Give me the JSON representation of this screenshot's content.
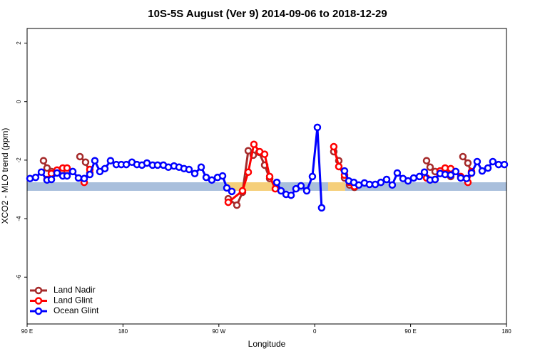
{
  "chart_data": {
    "type": "line",
    "title": "10S-5S August (Ver 9)   2014-09-06 to 2018-12-29",
    "x_label": "Longitude",
    "y_label": "XCO2 - MLO trend (ppm)",
    "xlim": [
      90,
      540
    ],
    "xticks": [
      {
        "value": 90,
        "label": "90 E"
      },
      180,
      {
        "value": 270,
        "label": "90 W"
      },
      {
        "value": 360,
        "label": "0"
      },
      {
        "value": 450,
        "label": "90 E"
      },
      {
        "value": 540,
        "label": "180"
      }
    ],
    "ylim": [
      -7.6,
      2.5
    ],
    "yticks": [
      2,
      0,
      -2,
      -4,
      -6
    ],
    "legend": "bottom-left",
    "series": [
      {
        "name": "Land Nadir",
        "color": "#a52a2a",
        "x": [
          105.4,
          108.7,
          112.8,
          118.1,
          123.5,
          127.5,
          null,
          139.6,
          144.9,
          148.9,
          null,
          278.8,
          286.9,
          292.2,
          297.6,
          302.3,
          307.6,
          313.0,
          317.7,
          null,
          377.9,
          382.6,
          388.0,
          392.7,
          397.3,
          null,
          465.0,
          468.3,
          473.0,
          477.7,
          482.4,
          487.7,
          null,
          499.1,
          503.8,
          507.2
        ],
        "values": [
          -2.02,
          -2.27,
          -2.39,
          -2.39,
          -2.37,
          -2.37,
          null,
          -1.88,
          -2.07,
          -2.44,
          null,
          -3.32,
          -3.54,
          -3.1,
          -1.68,
          -1.83,
          -1.73,
          -2.17,
          -2.63,
          null,
          -1.71,
          -2.02,
          -2.61,
          -2.85,
          -2.93,
          null,
          -2.02,
          -2.24,
          -2.39,
          -2.37,
          -2.37,
          -2.56,
          null,
          -1.88,
          -2.1,
          -2.44
        ]
      },
      {
        "name": "Land Glint",
        "color": "#ff0000",
        "x": [
          108.7,
          112.8,
          118.1,
          123.5,
          127.5,
          null,
          143.6,
          148.9,
          null,
          278.8,
          292.2,
          297.6,
          302.9,
          308.3,
          313.0,
          317.7,
          323.0,
          null,
          377.9,
          382.6,
          388.0,
          392.7,
          397.3,
          null,
          465.0,
          473.0,
          477.7,
          482.4,
          487.7,
          null,
          497.1,
          503.8,
          507.2
        ],
        "values": [
          -2.66,
          -2.46,
          -2.34,
          -2.27,
          -2.27,
          null,
          -2.76,
          -2.32,
          null,
          -3.44,
          -3.05,
          -2.41,
          -1.46,
          -1.71,
          -1.8,
          -2.56,
          -2.98,
          null,
          -1.54,
          -2.22,
          -2.51,
          -2.76,
          -2.9,
          null,
          -2.61,
          -2.66,
          -2.37,
          -2.27,
          -2.29,
          null,
          -2.56,
          -2.76,
          -2.39
        ]
      },
      {
        "name": "Ocean Glint",
        "color": "#0000ff",
        "x": [
          92.7,
          98.0,
          103.4,
          108.7,
          112.8,
          118.1,
          123.5,
          127.5,
          132.9,
          138.2,
          143.6,
          148.9,
          153.6,
          158.3,
          163.0,
          168.3,
          173.7,
          178.4,
          183.1,
          188.4,
          193.1,
          197.8,
          202.5,
          207.8,
          212.5,
          217.9,
          222.6,
          227.9,
          232.6,
          237.3,
          242.0,
          247.4,
          253.4,
          258.1,
          263.4,
          268.8,
          273.5,
          277.5,
          282.2,
          null,
          324.4,
          328.4,
          333.1,
          337.8,
          342.4,
          347.1,
          352.5,
          357.8,
          362.5,
          366.5,
          null,
          388.0,
          392.0,
          396.7,
          401.4,
          406.7,
          411.4,
          416.8,
          422.1,
          427.5,
          432.8,
          437.5,
          442.9,
          447.6,
          452.9,
          458.3,
          463.0,
          468.3,
          473.0,
          477.7,
          482.4,
          487.7,
          492.4,
          497.1,
          502.5,
          507.2,
          512.5,
          517.2,
          522.6,
          527.2,
          532.6,
          538.0
        ],
        "values": [
          -2.63,
          -2.59,
          -2.41,
          -2.68,
          -2.66,
          -2.44,
          -2.54,
          -2.54,
          -2.39,
          -2.61,
          -2.63,
          -2.49,
          -2.02,
          -2.39,
          -2.29,
          -2.02,
          -2.15,
          -2.15,
          -2.15,
          -2.07,
          -2.15,
          -2.17,
          -2.1,
          -2.17,
          -2.17,
          -2.17,
          -2.24,
          -2.2,
          -2.24,
          -2.29,
          -2.32,
          -2.46,
          -2.24,
          -2.59,
          -2.68,
          -2.59,
          -2.54,
          -2.95,
          -3.07,
          null,
          -2.76,
          -3.05,
          -3.17,
          -3.2,
          -2.98,
          -2.88,
          -3.05,
          -2.56,
          -0.88,
          -3.63,
          null,
          -2.37,
          -2.71,
          -2.76,
          -2.85,
          -2.78,
          -2.83,
          -2.83,
          -2.76,
          -2.66,
          -2.85,
          -2.44,
          -2.63,
          -2.71,
          -2.61,
          -2.56,
          -2.41,
          -2.68,
          -2.66,
          -2.46,
          -2.49,
          -2.51,
          -2.39,
          -2.61,
          -2.63,
          -2.44,
          -2.05,
          -2.37,
          -2.27,
          -2.05,
          -2.15,
          -2.15
        ]
      }
    ]
  }
}
